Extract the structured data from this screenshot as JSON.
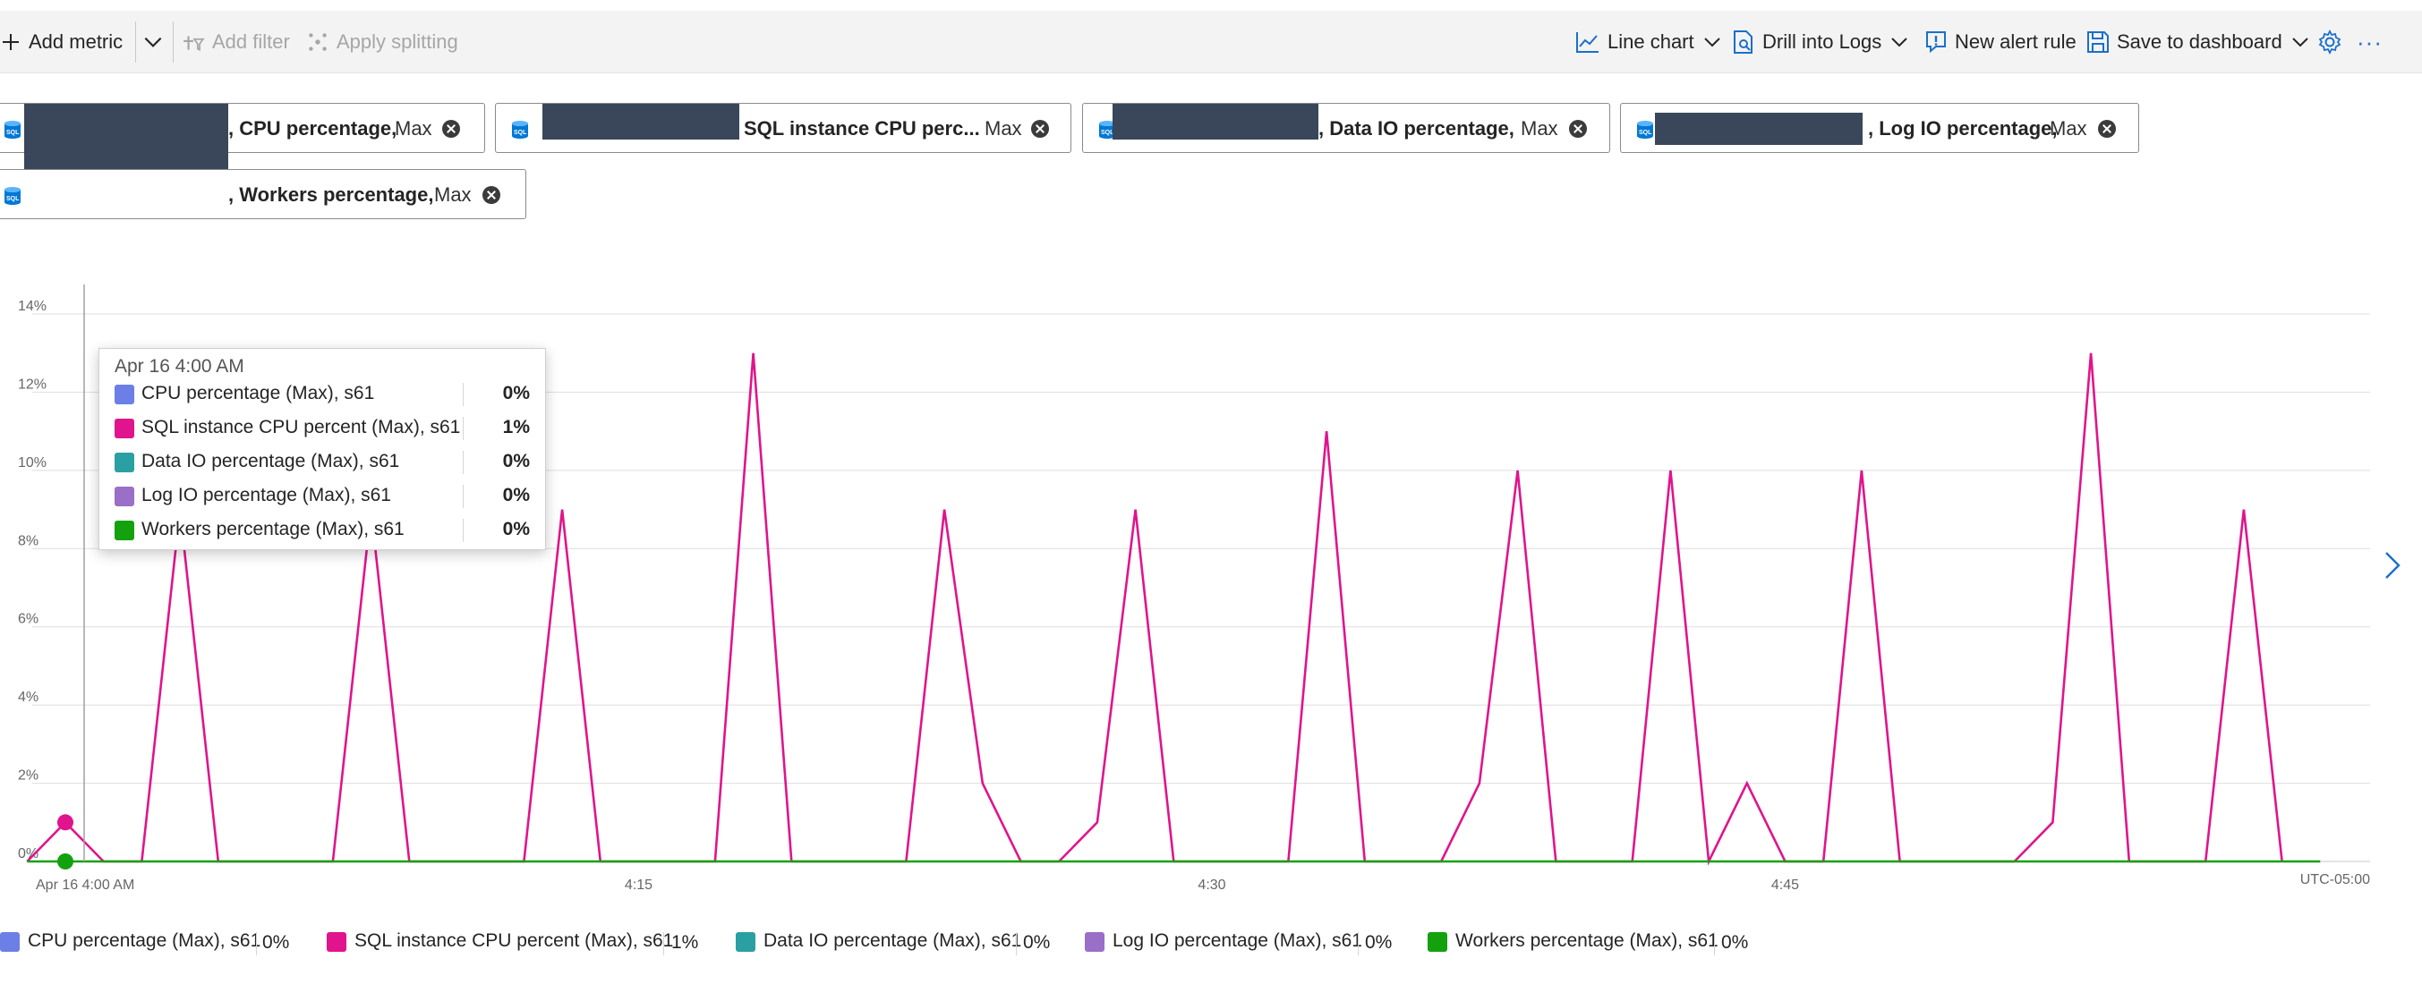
{
  "toolbar": {
    "add_metric": "Add metric",
    "add_filter": "Add filter",
    "apply_splitting": "Apply splitting",
    "line_chart": "Line chart",
    "drill_logs": "Drill into Logs",
    "new_alert": "New alert rule",
    "save_dashboard": "Save to dashboard",
    "more": "···",
    "icons": [
      "plus-icon",
      "chevron-down-icon",
      "filter-icon",
      "splitting-icon",
      "line-chart-icon",
      "logs-icon",
      "alert-icon",
      "save-icon",
      "gear-icon",
      "more-icon"
    ]
  },
  "pills": [
    {
      "metric": ", CPU percentage,",
      "agg": "Max"
    },
    {
      "metric": "SQL instance CPU perc...",
      "agg": "Max"
    },
    {
      "metric": ", Data IO percentage,",
      "agg": "Max"
    },
    {
      "metric": ", Log IO percentage,",
      "agg": "Max"
    },
    {
      "metric": ", Workers percentage,",
      "agg": "Max"
    }
  ],
  "tooltip": {
    "title": "Apr 16 4:00 AM",
    "rows": [
      {
        "name": "CPU percentage (Max), s61",
        "value": "0%"
      },
      {
        "name": "SQL instance CPU percent (Max), s61",
        "value": "1%"
      },
      {
        "name": "Data IO percentage (Max), s61",
        "value": "0%"
      },
      {
        "name": "Log IO percentage (Max), s61",
        "value": "0%"
      },
      {
        "name": "Workers percentage (Max), s61",
        "value": "0%"
      }
    ]
  },
  "legend": [
    {
      "name": "CPU percentage (Max), s61",
      "value": "0%"
    },
    {
      "name": "SQL instance CPU percent (Max), s61",
      "value": "1%"
    },
    {
      "name": "Data IO percentage (Max), s61",
      "value": "0%"
    },
    {
      "name": "Log IO percentage (Max), s61",
      "value": "0%"
    },
    {
      "name": "Workers percentage (Max), s61",
      "value": "0%"
    }
  ],
  "colors": {
    "cpu": "#6b7fe6",
    "sql_cpu": "#e0148c",
    "data_io": "#2aa0a4",
    "log_io": "#9a6fc7",
    "workers": "#13a10e"
  },
  "chart_data": {
    "type": "line",
    "ylim": [
      0,
      14
    ],
    "y_ticks": [
      "0%",
      "2%",
      "4%",
      "6%",
      "8%",
      "10%",
      "12%",
      "14%"
    ],
    "x_ticks": [
      {
        "label": "Apr 16 4:00 AM",
        "minute": 0
      },
      {
        "label": "4:15",
        "minute": 15
      },
      {
        "label": "4:30",
        "minute": 30
      },
      {
        "label": "4:45",
        "minute": 45
      }
    ],
    "timezone": "UTC-05:00",
    "series": [
      {
        "name": "SQL instance CPU percent (Max), s61",
        "color": "#e0148c",
        "points": [
          [
            -1,
            0
          ],
          [
            0,
            1
          ],
          [
            1,
            0
          ],
          [
            2,
            0
          ],
          [
            3,
            9
          ],
          [
            4,
            0
          ],
          [
            5,
            0
          ],
          [
            6,
            0
          ],
          [
            7,
            0
          ],
          [
            8,
            9
          ],
          [
            9,
            0
          ],
          [
            10,
            0
          ],
          [
            11,
            0
          ],
          [
            12,
            0
          ],
          [
            13,
            9
          ],
          [
            14,
            0
          ],
          [
            15,
            0
          ],
          [
            16,
            0
          ],
          [
            17,
            0
          ],
          [
            18,
            13
          ],
          [
            19,
            0
          ],
          [
            20,
            0
          ],
          [
            21,
            0
          ],
          [
            22,
            0
          ],
          [
            23,
            9
          ],
          [
            24,
            2
          ],
          [
            25,
            0
          ],
          [
            26,
            0
          ],
          [
            27,
            1
          ],
          [
            28,
            9
          ],
          [
            29,
            0
          ],
          [
            30,
            0
          ],
          [
            31,
            0
          ],
          [
            32,
            0
          ],
          [
            33,
            11
          ],
          [
            34,
            0
          ],
          [
            35,
            0
          ],
          [
            36,
            0
          ],
          [
            37,
            2
          ],
          [
            38,
            10
          ],
          [
            39,
            0
          ],
          [
            40,
            0
          ],
          [
            41,
            0
          ],
          [
            42,
            10
          ],
          [
            43,
            0
          ],
          [
            44,
            2
          ],
          [
            45,
            0
          ],
          [
            46,
            0
          ],
          [
            47,
            10
          ],
          [
            48,
            0
          ],
          [
            49,
            0
          ],
          [
            50,
            0
          ],
          [
            51,
            0
          ],
          [
            52,
            1
          ],
          [
            53,
            13
          ],
          [
            54,
            0
          ],
          [
            55,
            0
          ],
          [
            56,
            0
          ],
          [
            57,
            9
          ],
          [
            58,
            0
          ]
        ]
      },
      {
        "name": "Workers percentage (Max), s61",
        "color": "#13a10e",
        "points": [
          [
            -1,
            0
          ],
          [
            59,
            0
          ]
        ]
      }
    ]
  }
}
